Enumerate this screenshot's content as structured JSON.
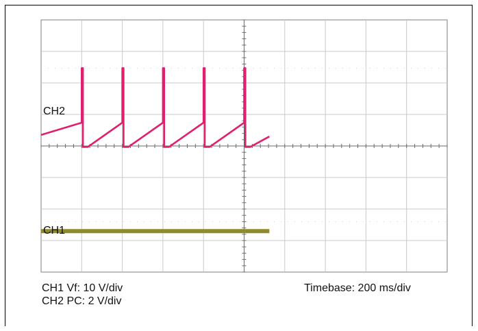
{
  "chart_data": {
    "type": "line",
    "title": "",
    "xlabel": "",
    "ylabel": "",
    "grid": true,
    "x_divisions": 10,
    "y_divisions": 8,
    "channel_labels": {
      "ch2": "CH2",
      "ch1": "CH1"
    },
    "series": [
      {
        "name": "CH2",
        "color": "#e0206f",
        "points": [
          [
            0.0,
            4.35
          ],
          [
            1.0,
            4.74
          ],
          [
            1.0,
            6.47
          ],
          [
            1.03,
            6.47
          ],
          [
            1.03,
            3.97
          ],
          [
            1.15,
            3.97
          ],
          [
            2.0,
            4.74
          ],
          [
            2.0,
            6.47
          ],
          [
            2.03,
            6.47
          ],
          [
            2.03,
            3.97
          ],
          [
            2.15,
            3.97
          ],
          [
            3.0,
            4.74
          ],
          [
            3.0,
            6.47
          ],
          [
            3.03,
            6.47
          ],
          [
            3.03,
            3.97
          ],
          [
            3.15,
            3.97
          ],
          [
            4.0,
            4.74
          ],
          [
            4.0,
            6.47
          ],
          [
            4.03,
            6.47
          ],
          [
            4.03,
            3.97
          ],
          [
            4.15,
            3.97
          ],
          [
            5.0,
            4.74
          ],
          [
            5.0,
            6.47
          ],
          [
            5.03,
            6.47
          ],
          [
            5.03,
            3.97
          ],
          [
            5.15,
            3.97
          ],
          [
            5.62,
            4.3
          ]
        ]
      },
      {
        "name": "CH1",
        "color": "#8f8a2a",
        "points": [
          [
            0.0,
            1.3
          ],
          [
            5.62,
            1.3
          ]
        ]
      }
    ]
  },
  "captions": {
    "ch1": "CH1 Vf: 10 V/div",
    "ch2": "CH2 PC: 2 V/div",
    "timebase": "Timebase: 200 ms/div"
  }
}
